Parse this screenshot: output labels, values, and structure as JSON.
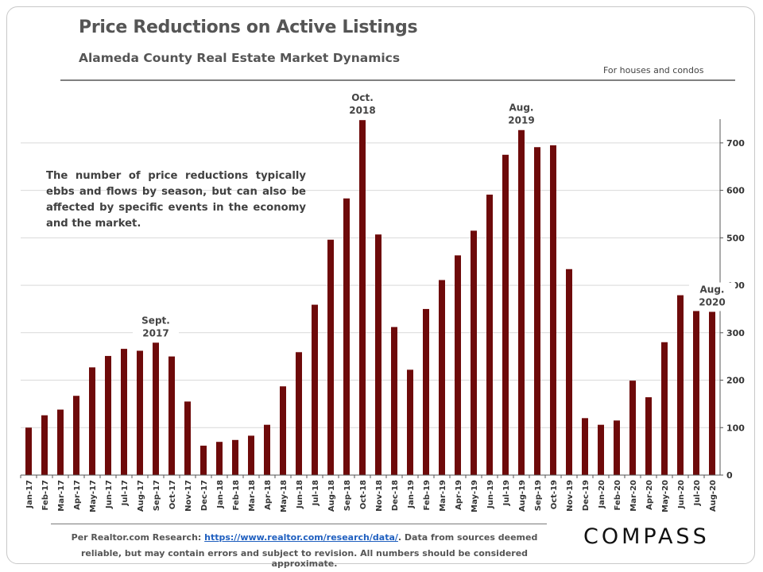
{
  "header": {
    "title": "Price Reductions on Active Listings",
    "subtitle": "Alameda County Real Estate Market Dynamics",
    "note": "For houses and condos"
  },
  "annotation": "The number of price reductions typically ebbs and flows by season, but can also be affected by specific events in the economy and the market.",
  "footer": {
    "prefix": "Per Realtor.com Research: ",
    "link": "https://www.realtor.com/research/data/",
    "suffix": ". Data from sources deemed",
    "line2": "reliable, but may contain errors and subject to revision. All numbers should be considered approximate."
  },
  "logo": "COMPASS",
  "colors": {
    "bar": "#6e0a0a",
    "axis": "#555555",
    "grid": "#d9d9d9"
  },
  "chart_data": {
    "type": "bar",
    "title": "",
    "xlabel": "",
    "ylabel": "",
    "ylim": [
      0,
      750
    ],
    "yticks": [
      0,
      100,
      200,
      300,
      400,
      500,
      600,
      700
    ],
    "y_axis_side": "right",
    "grid": true,
    "categories": [
      "Jan-17",
      "Feb-17",
      "Mar-17",
      "Apr-17",
      "May-17",
      "Jun-17",
      "Jul-17",
      "Aug-17",
      "Sep-17",
      "Oct-17",
      "Nov-17",
      "Dec-17",
      "Jan-18",
      "Feb-18",
      "Mar-18",
      "Apr-18",
      "May-18",
      "Jun-18",
      "Jul-18",
      "Aug-18",
      "Sep-18",
      "Oct-18",
      "Nov-18",
      "Dec-18",
      "Jan-19",
      "Feb-19",
      "Mar-19",
      "Apr-19",
      "May-19",
      "Jun-19",
      "Jul-19",
      "Aug-19",
      "Sep-19",
      "Oct-19",
      "Nov-19",
      "Dec-19",
      "Jan-20",
      "Feb-20",
      "Mar-20",
      "Apr-20",
      "May-20",
      "Jun-20",
      "Jul-20",
      "Aug-20"
    ],
    "values": [
      100,
      126,
      138,
      167,
      227,
      251,
      266,
      262,
      279,
      250,
      155,
      62,
      70,
      74,
      83,
      106,
      187,
      259,
      359,
      496,
      583,
      748,
      507,
      312,
      222,
      350,
      411,
      463,
      515,
      591,
      675,
      727,
      691,
      695,
      434,
      120,
      106,
      115,
      199,
      164,
      280,
      379,
      355,
      344
    ],
    "callouts": [
      {
        "category": "Sep-17",
        "lines": [
          "Sept.",
          "2017"
        ]
      },
      {
        "category": "Oct-18",
        "lines": [
          "Oct.",
          "2018"
        ]
      },
      {
        "category": "Aug-19",
        "lines": [
          "Aug.",
          "2019"
        ]
      },
      {
        "category": "Aug-20",
        "lines": [
          "Aug.",
          "2020"
        ]
      }
    ]
  }
}
